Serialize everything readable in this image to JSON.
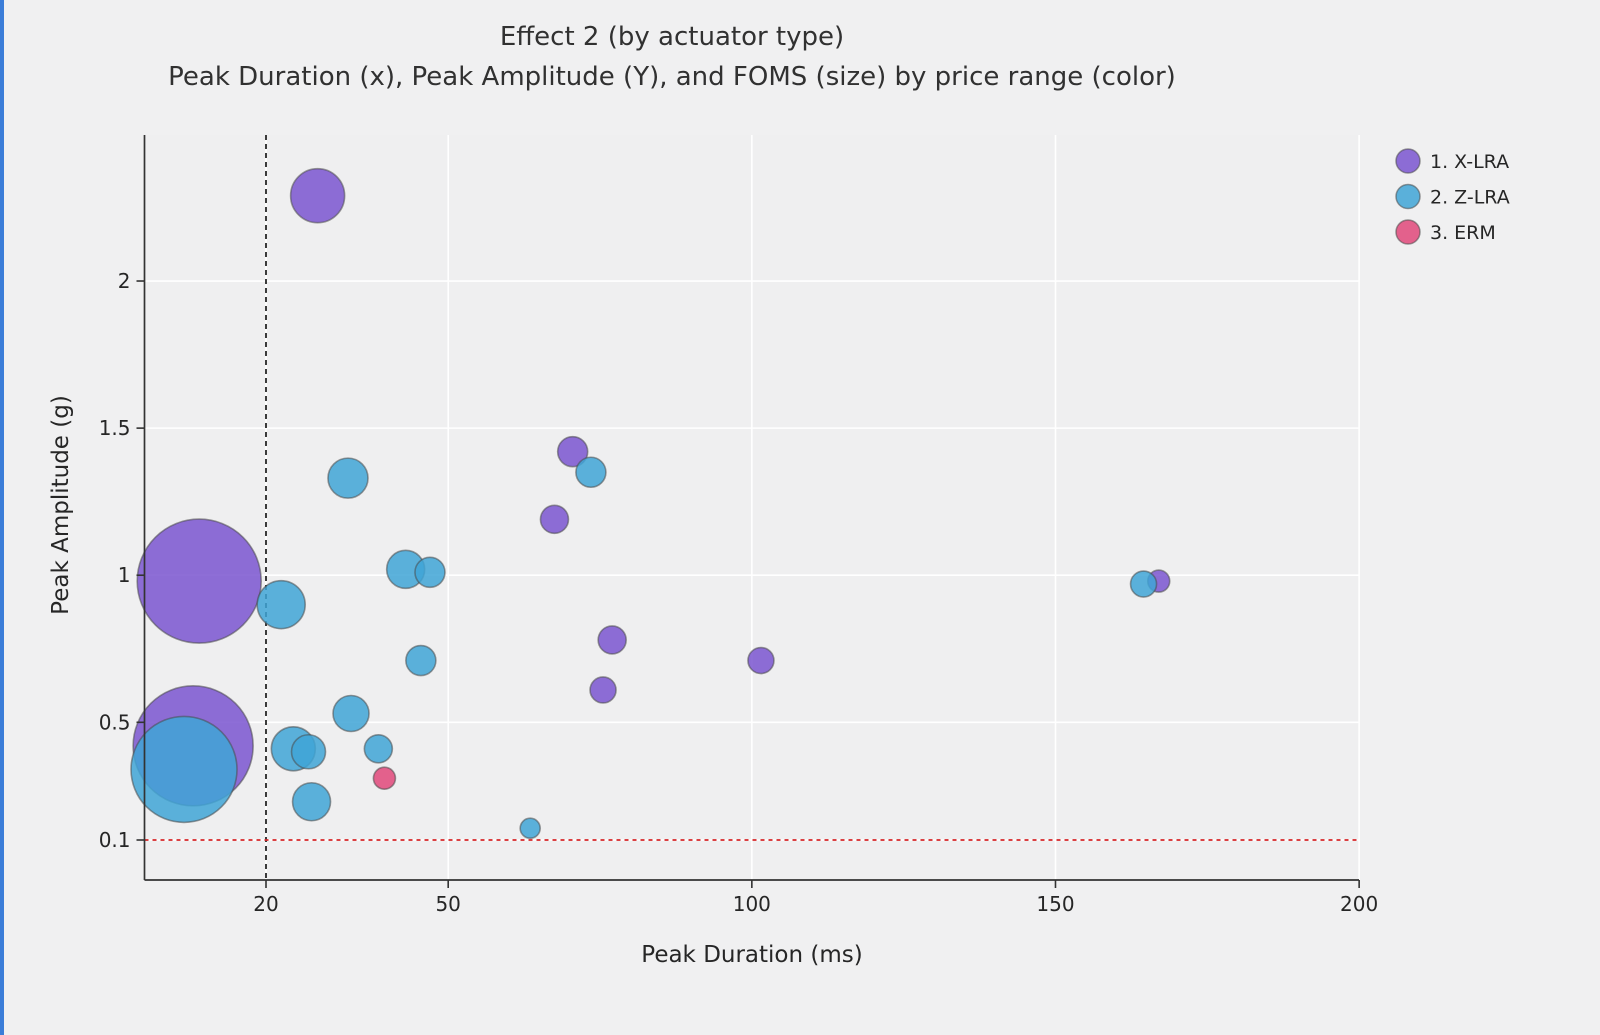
{
  "page": {
    "background_color": "#f0f0f1",
    "left_accent_bar_color": "#3b7dd8"
  },
  "chart_data": {
    "type": "scatter",
    "title": "Effect 2 (by actuator type)",
    "subtitle": "Peak Duration (x), Peak Amplitude (Y), and FOMS (size) by price range (color)",
    "xlabel": "Peak Duration (ms)",
    "ylabel": "Peak Amplitude (g)",
    "x_axis": {
      "min": 0,
      "max": 200,
      "ticks": [
        {
          "v": 20,
          "label": "20"
        },
        {
          "v": 50,
          "label": "50"
        },
        {
          "v": 100,
          "label": "100"
        },
        {
          "v": 150,
          "label": "150"
        },
        {
          "v": 200,
          "label": "200"
        }
      ]
    },
    "y_axis": {
      "min": 0,
      "max": 2.45,
      "ticks": [
        {
          "v": 0.1,
          "label": "0.1"
        },
        {
          "v": 0.5,
          "label": "0.5"
        },
        {
          "v": 1,
          "label": "1"
        },
        {
          "v": 1.5,
          "label": "1.5"
        },
        {
          "v": 2,
          "label": "2"
        }
      ]
    },
    "grid": true,
    "grid_color": "#ffffff",
    "plot_bg": "#efeff0",
    "axis_color": "#333333",
    "text_color": "#262626",
    "bubble_opacity": 0.85,
    "bubble_stroke_color": "#4a4a4a",
    "legend_position": "top-right",
    "reference_lines": [
      {
        "orient": "vertical",
        "value": 20,
        "color": "#1a1a1a",
        "dash": "5,4"
      },
      {
        "orient": "horizontal",
        "value": 0.1,
        "color": "#d62728",
        "dash": "4,4"
      }
    ],
    "series": [
      {
        "name": "1. X-LRA",
        "color": "#7a55d0",
        "points": [
          {
            "x": 28.5,
            "y": 2.29,
            "r": 27
          },
          {
            "x": 70.5,
            "y": 1.42,
            "r": 15
          },
          {
            "x": 67.5,
            "y": 1.19,
            "r": 14
          },
          {
            "x": 9,
            "y": 0.98,
            "r": 62
          },
          {
            "x": 167,
            "y": 0.98,
            "r": 11
          },
          {
            "x": 77,
            "y": 0.78,
            "r": 14
          },
          {
            "x": 101.5,
            "y": 0.71,
            "r": 13
          },
          {
            "x": 75.5,
            "y": 0.61,
            "r": 13
          },
          {
            "x": 8,
            "y": 0.42,
            "r": 60
          }
        ]
      },
      {
        "name": "2. Z-LRA",
        "color": "#3fa5d6",
        "points": [
          {
            "x": 73.5,
            "y": 1.35,
            "r": 15
          },
          {
            "x": 33.5,
            "y": 1.33,
            "r": 20
          },
          {
            "x": 43,
            "y": 1.02,
            "r": 19
          },
          {
            "x": 47,
            "y": 1.01,
            "r": 15
          },
          {
            "x": 22.5,
            "y": 0.9,
            "r": 24
          },
          {
            "x": 164.5,
            "y": 0.97,
            "r": 13
          },
          {
            "x": 45.5,
            "y": 0.71,
            "r": 15
          },
          {
            "x": 34,
            "y": 0.53,
            "r": 18
          },
          {
            "x": 6.5,
            "y": 0.34,
            "r": 53
          },
          {
            "x": 24.5,
            "y": 0.41,
            "r": 22
          },
          {
            "x": 27,
            "y": 0.4,
            "r": 17
          },
          {
            "x": 38.5,
            "y": 0.41,
            "r": 14
          },
          {
            "x": 27.5,
            "y": 0.23,
            "r": 19
          },
          {
            "x": 63.5,
            "y": 0.14,
            "r": 10
          }
        ]
      },
      {
        "name": "3. ERM",
        "color": "#e0487a",
        "points": [
          {
            "x": 39.5,
            "y": 0.31,
            "r": 11
          }
        ]
      }
    ]
  }
}
